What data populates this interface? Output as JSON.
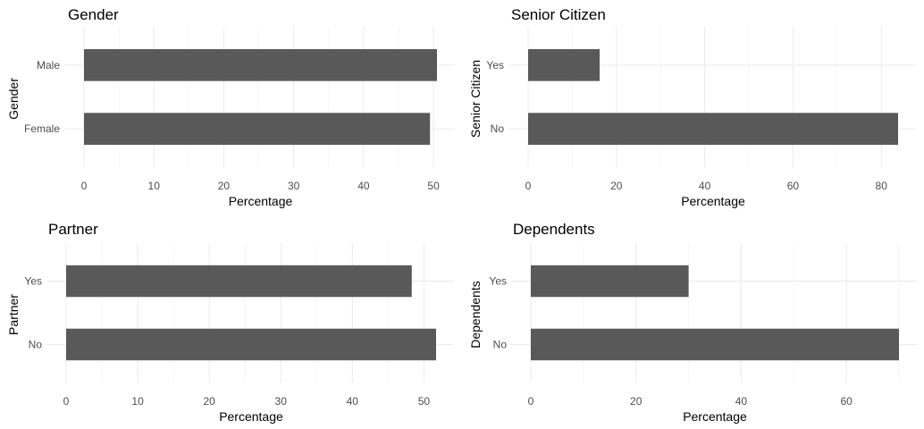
{
  "chart_data": [
    {
      "type": "bar",
      "orientation": "horizontal",
      "title": "Gender",
      "xlabel": "Percentage",
      "ylabel": "Gender",
      "categories": [
        "Female",
        "Male"
      ],
      "values": [
        49.5,
        50.5
      ],
      "xlim": [
        0,
        50.5
      ],
      "xticks": [
        0,
        10,
        20,
        30,
        40,
        50
      ],
      "grid": true,
      "bar_color": "#595959"
    },
    {
      "type": "bar",
      "orientation": "horizontal",
      "title": "Senior Citizen",
      "xlabel": "Percentage",
      "ylabel": "Senior Citizen",
      "categories": [
        "No",
        "Yes"
      ],
      "values": [
        83.8,
        16.2
      ],
      "xlim": [
        0,
        83.8
      ],
      "xticks": [
        0,
        20,
        40,
        60,
        80
      ],
      "grid": true,
      "bar_color": "#595959"
    },
    {
      "type": "bar",
      "orientation": "horizontal",
      "title": "Partner",
      "xlabel": "Percentage",
      "ylabel": "Partner",
      "categories": [
        "No",
        "Yes"
      ],
      "values": [
        51.7,
        48.3
      ],
      "xlim": [
        0,
        51.7
      ],
      "xticks": [
        0,
        10,
        20,
        30,
        40,
        50
      ],
      "grid": true,
      "bar_color": "#595959"
    },
    {
      "type": "bar",
      "orientation": "horizontal",
      "title": "Dependents",
      "xlabel": "Percentage",
      "ylabel": "Dependents",
      "categories": [
        "No",
        "Yes"
      ],
      "values": [
        70.0,
        30.0
      ],
      "xlim": [
        0,
        70.0
      ],
      "xticks": [
        0,
        20,
        40,
        60
      ],
      "grid": true,
      "bar_color": "#595959"
    }
  ]
}
